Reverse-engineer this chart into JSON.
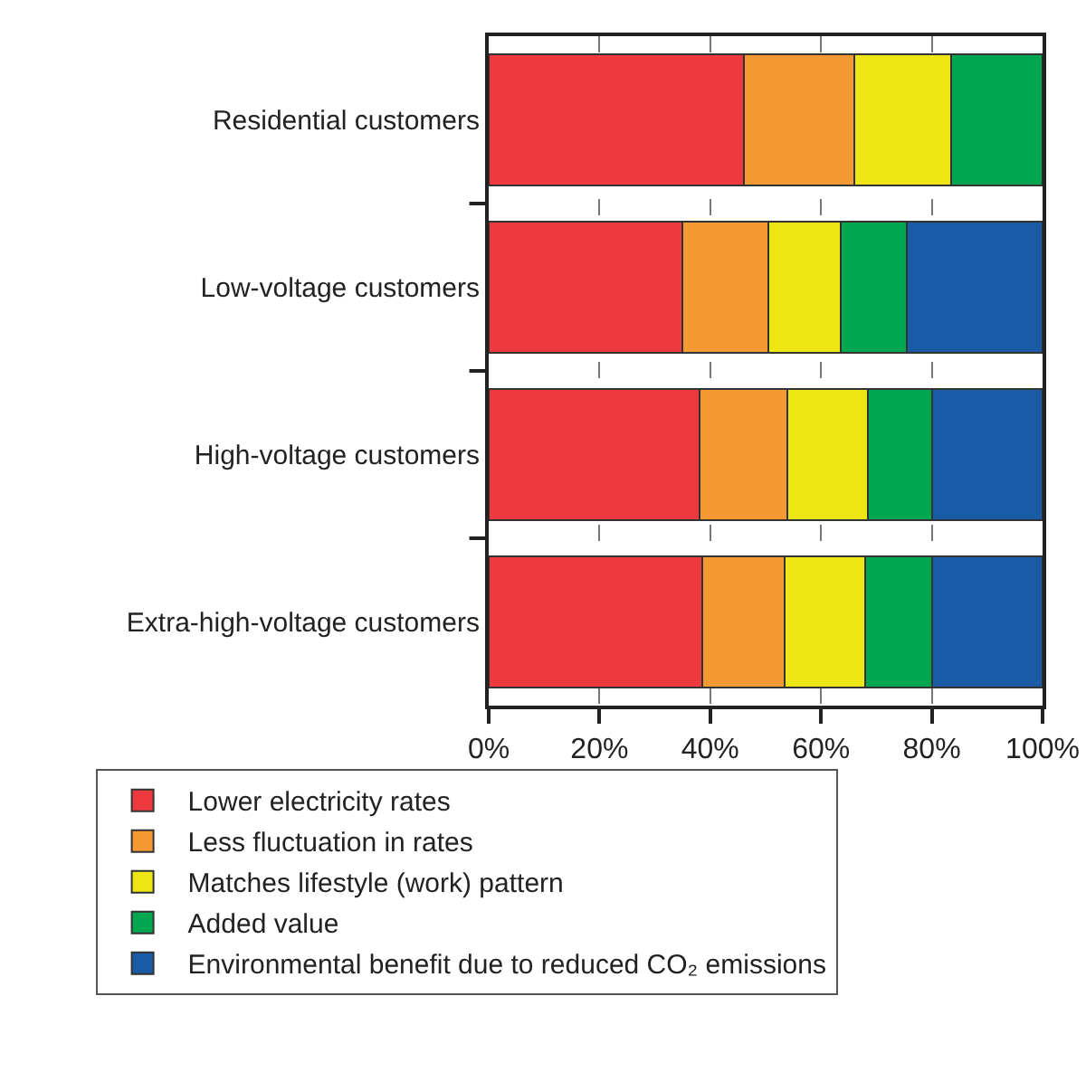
{
  "chart_data": {
    "type": "bar",
    "orientation": "horizontal",
    "stacked": true,
    "categories": [
      "Residential customers",
      "Low-voltage customers",
      "High-voltage customers",
      "Extra-high-voltage customers"
    ],
    "series": [
      {
        "name": "Lower electricity rates",
        "color": "#ee3a3f",
        "values": [
          46,
          35,
          38,
          38.5
        ]
      },
      {
        "name": "Less fluctuation in rates",
        "color": "#f59a32",
        "values": [
          20,
          15.5,
          16,
          15
        ]
      },
      {
        "name": "Matches lifestyle (work) pattern",
        "color": "#ede614",
        "values": [
          17.5,
          13,
          14.5,
          14.5
        ]
      },
      {
        "name": "Added value",
        "color": "#00a650",
        "values": [
          16.5,
          12,
          11.5,
          12
        ]
      },
      {
        "name": "Environmental benefit due to reduced CO₂ emissions",
        "color": "#1a5ba6",
        "values": [
          null,
          24.5,
          20,
          20
        ]
      }
    ],
    "xlim": [
      0,
      100
    ],
    "xticks": [
      {
        "value": 0,
        "label": "0%"
      },
      {
        "value": 20,
        "label": "20%"
      },
      {
        "value": 40,
        "label": "40%"
      },
      {
        "value": 60,
        "label": "60%"
      },
      {
        "value": 80,
        "label": "80%"
      },
      {
        "value": 100,
        "label": "100%"
      }
    ],
    "grid": "x",
    "legend": "bottom"
  }
}
